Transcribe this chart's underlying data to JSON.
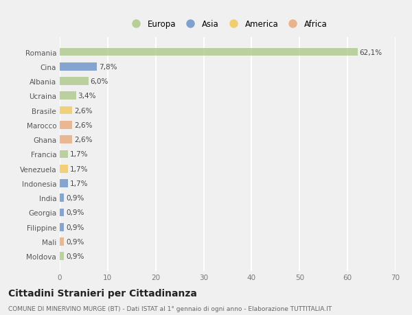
{
  "countries": [
    "Romania",
    "Cina",
    "Albania",
    "Ucraina",
    "Brasile",
    "Marocco",
    "Ghana",
    "Francia",
    "Venezuela",
    "Indonesia",
    "India",
    "Georgia",
    "Filippine",
    "Mali",
    "Moldova"
  ],
  "values": [
    62.1,
    7.8,
    6.0,
    3.4,
    2.6,
    2.6,
    2.6,
    1.7,
    1.7,
    1.7,
    0.9,
    0.9,
    0.9,
    0.9,
    0.9
  ],
  "labels": [
    "62,1%",
    "7,8%",
    "6,0%",
    "3,4%",
    "2,6%",
    "2,6%",
    "2,6%",
    "1,7%",
    "1,7%",
    "1,7%",
    "0,9%",
    "0,9%",
    "0,9%",
    "0,9%",
    "0,9%"
  ],
  "continents": [
    "Europa",
    "Asia",
    "Europa",
    "Europa",
    "America",
    "Africa",
    "Africa",
    "Europa",
    "America",
    "Asia",
    "Asia",
    "Asia",
    "Asia",
    "Africa",
    "Europa"
  ],
  "continent_colors": {
    "Europa": "#adc98a",
    "Asia": "#6b93c9",
    "America": "#f0c95a",
    "Africa": "#e8a97a"
  },
  "legend_order": [
    "Europa",
    "Asia",
    "America",
    "Africa"
  ],
  "title": "Cittadini Stranieri per Cittadinanza",
  "subtitle": "COMUNE DI MINERVINO MURGE (BT) - Dati ISTAT al 1° gennaio di ogni anno - Elaborazione TUTTITALIA.IT",
  "xlim": [
    0,
    70
  ],
  "xticks": [
    0,
    10,
    20,
    30,
    40,
    50,
    60,
    70
  ],
  "background_color": "#f0f0f0",
  "grid_color": "#ffffff",
  "bar_height": 0.55,
  "label_fontsize": 7.5,
  "tick_fontsize": 7.5,
  "title_fontsize": 10,
  "subtitle_fontsize": 6.5,
  "legend_fontsize": 8.5
}
